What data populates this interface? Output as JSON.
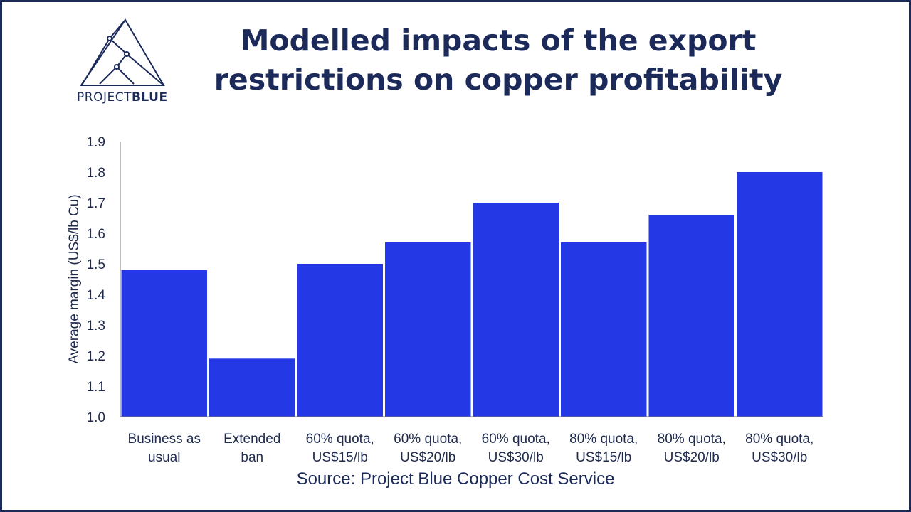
{
  "brand": {
    "logo_light": "PROJECT",
    "logo_bold": "BLUE",
    "color": "#1c2a5a"
  },
  "header": {
    "title_line1": "Modelled impacts of the export",
    "title_line2": "restrictions on copper profitability"
  },
  "footer": {
    "source": "Source: Project Blue Copper Cost Service"
  },
  "chart_data": {
    "type": "bar",
    "categories": [
      [
        "Business as",
        "usual"
      ],
      [
        "Extended",
        "ban"
      ],
      [
        "60% quota,",
        "US$15/lb"
      ],
      [
        "60% quota,",
        "US$20/lb"
      ],
      [
        "60% quota,",
        "US$30/lb"
      ],
      [
        "80% quota,",
        "US$15/lb"
      ],
      [
        "80% quota,",
        "US$20/lb"
      ],
      [
        "80% quota,",
        "US$30/lb"
      ]
    ],
    "values": [
      1.48,
      1.19,
      1.5,
      1.57,
      1.7,
      1.57,
      1.66,
      1.8
    ],
    "ylabel": "Average margin (US$/lb Cu)",
    "ylim": [
      1.0,
      1.9
    ],
    "yticks": [
      "1.0",
      "1.1",
      "1.2",
      "1.3",
      "1.4",
      "1.5",
      "1.6",
      "1.7",
      "1.8",
      "1.9"
    ],
    "bar_color": "#2438e6",
    "grid": false,
    "legend": "none"
  }
}
